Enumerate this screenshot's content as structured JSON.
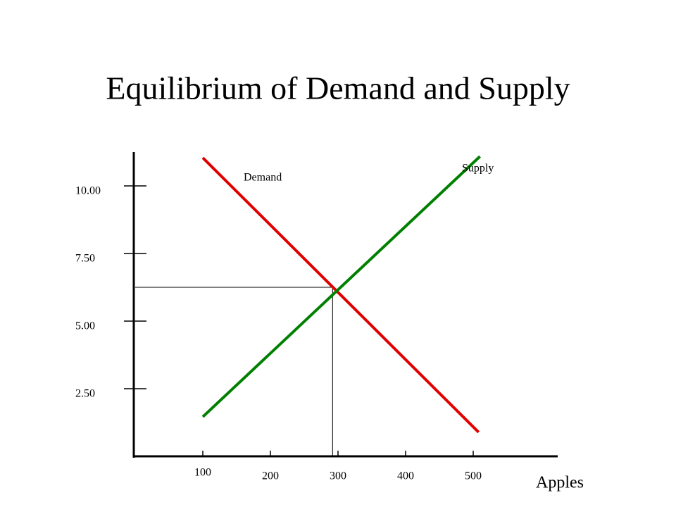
{
  "chart_data": {
    "type": "line",
    "title": "Equilibrium of Demand and Supply",
    "x_label": "Apples",
    "xlim": [
      0,
      625
    ],
    "ylim": [
      0,
      11.25
    ],
    "xticks": [
      100,
      200,
      300,
      400,
      500
    ],
    "yticks": [
      {
        "value": 2.5,
        "label": "2.50"
      },
      {
        "value": 5,
        "label": "5.00"
      },
      {
        "value": 7.5,
        "label": "7.50"
      },
      {
        "value": 10,
        "label": "10.00"
      }
    ],
    "series": [
      {
        "name": "Demand",
        "color": "#e00000",
        "x": [
          100,
          508
        ],
        "values": [
          11.04,
          0.89
        ]
      },
      {
        "name": "Supply",
        "color": "#008000",
        "x": [
          100,
          510
        ],
        "values": [
          1.46,
          11.09
        ]
      }
    ],
    "equilibrium": {
      "x": 292,
      "y": 6.25
    }
  }
}
